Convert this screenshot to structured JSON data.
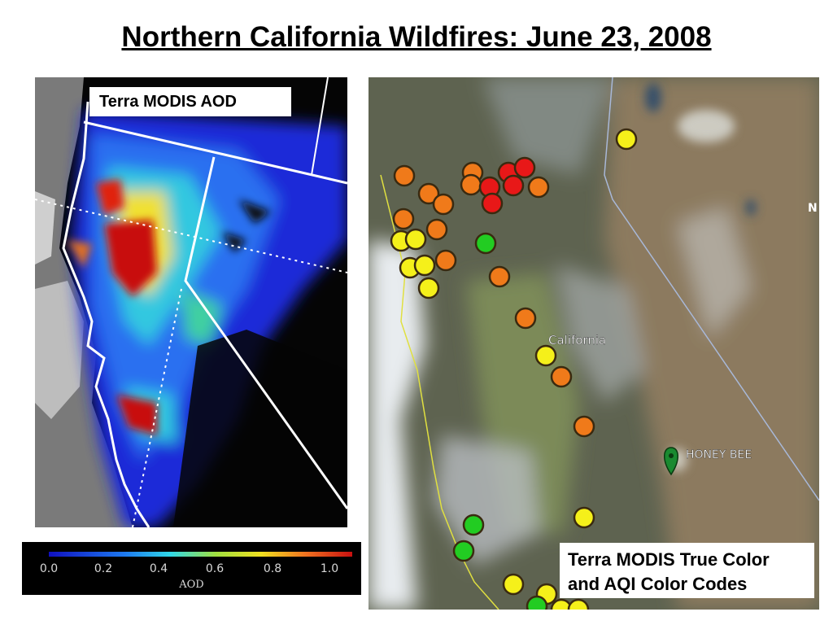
{
  "title": "Northern California Wildfires: June 23, 2008",
  "aod_panel": {
    "label": "Terra MODIS AOD"
  },
  "colorbar": {
    "ticks": [
      "0.0",
      "0.2",
      "0.4",
      "0.6",
      "0.8",
      "1.0"
    ],
    "label": "AOD"
  },
  "truecolor_panel": {
    "label_line1": "Terra MODIS True Color",
    "label_line2": "and AQI Color Codes",
    "state_label": "California",
    "place_label": "HONEY BEE",
    "edge_label": "N"
  },
  "aqi_colors": {
    "green": "#22cc22",
    "yellow": "#f5f01a",
    "orange": "#f07a1a",
    "red": "#e81818"
  }
}
